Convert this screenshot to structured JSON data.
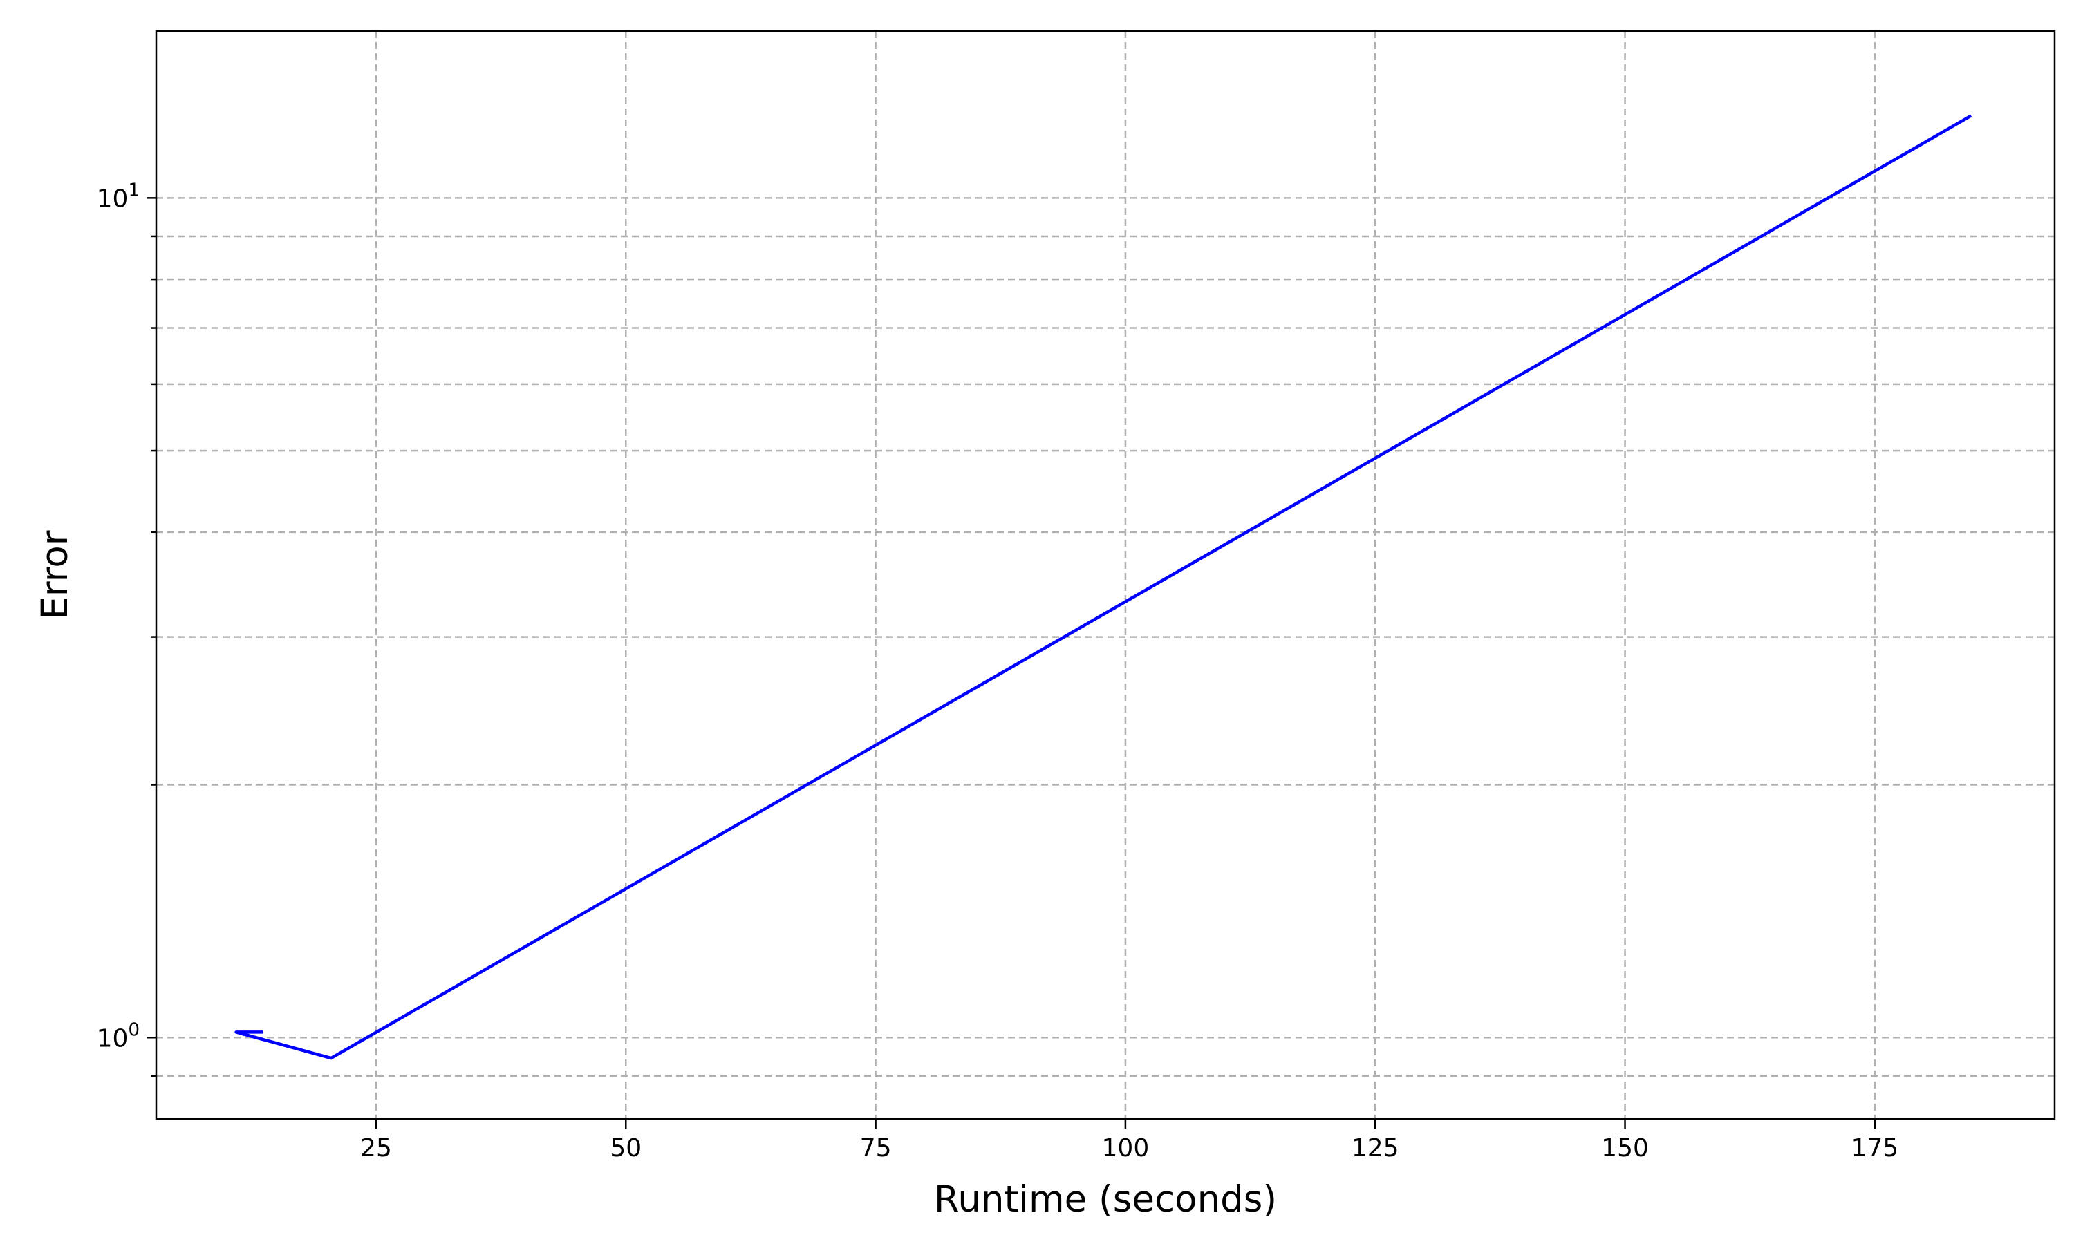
{
  "chart_data": {
    "type": "line",
    "title": "",
    "xlabel": "Runtime (seconds)",
    "ylabel": "Error",
    "xscale": "linear",
    "yscale": "log",
    "xlim": [
      3,
      193
    ],
    "ylim": [
      0.8,
      15.8
    ],
    "grid": true,
    "x_ticks": [
      {
        "value": 25,
        "label": "25"
      },
      {
        "value": 50,
        "label": "50"
      },
      {
        "value": 75,
        "label": "75"
      },
      {
        "value": 100,
        "label": "100"
      },
      {
        "value": 125,
        "label": "125"
      },
      {
        "value": 150,
        "label": "150"
      },
      {
        "value": 175,
        "label": "175"
      }
    ],
    "y_major_ticks": [
      {
        "value": 1,
        "base": "10",
        "exp": "0"
      },
      {
        "value": 10,
        "base": "10",
        "exp": "1"
      }
    ],
    "y_minor_ticks": [
      0.9,
      2,
      3,
      4,
      5,
      6,
      7,
      8,
      9
    ],
    "series": [
      {
        "color": "#0000ff",
        "x": [
          13.5,
          11.0,
          20.5,
          184.5
        ],
        "y": [
          1.015,
          1.015,
          0.945,
          12.5
        ]
      }
    ]
  }
}
